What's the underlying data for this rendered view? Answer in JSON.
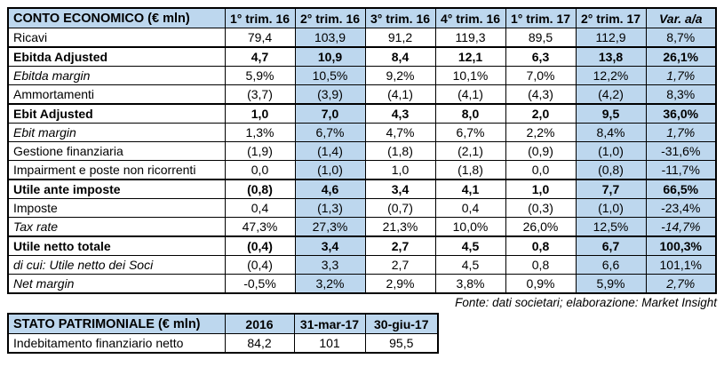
{
  "income_table": {
    "title": "CONTO ECONOMICO (€ mln)",
    "columns": [
      "1° trim. 16",
      "2° trim. 16",
      "3° trim. 16",
      "4° trim. 16",
      "1° trim. 17",
      "2° trim. 17",
      "Var. a/a"
    ],
    "highlighted_columns": [
      "2° trim. 16",
      "2° trim. 17",
      "Var. a/a"
    ],
    "rows": [
      {
        "label": "Ricavi",
        "style": "normal",
        "values": [
          "79,4",
          "103,9",
          "91,2",
          "119,3",
          "89,5",
          "112,9",
          "8,7%"
        ]
      },
      {
        "label": "Ebitda Adjusted",
        "style": "bold",
        "values": [
          "4,7",
          "10,9",
          "8,4",
          "12,1",
          "6,3",
          "13,8",
          "26,1%"
        ]
      },
      {
        "label": "Ebitda margin",
        "style": "italic",
        "values": [
          "5,9%",
          "10,5%",
          "9,2%",
          "10,1%",
          "7,0%",
          "12,2%",
          "1,7%"
        ]
      },
      {
        "label": "Ammortamenti",
        "style": "normal",
        "values": [
          "(3,7)",
          "(3,9)",
          "(4,1)",
          "(4,1)",
          "(4,3)",
          "(4,2)",
          "8,3%"
        ]
      },
      {
        "label": "Ebit Adjusted",
        "style": "bold",
        "values": [
          "1,0",
          "7,0",
          "4,3",
          "8,0",
          "2,0",
          "9,5",
          "36,0%"
        ]
      },
      {
        "label": "Ebit margin",
        "style": "italic",
        "values": [
          "1,3%",
          "6,7%",
          "4,7%",
          "6,7%",
          "2,2%",
          "8,4%",
          "1,7%"
        ]
      },
      {
        "label": "Gestione finanziaria",
        "style": "normal",
        "values": [
          "(1,9)",
          "(1,4)",
          "(1,8)",
          "(2,1)",
          "(0,9)",
          "(1,0)",
          "-31,6%"
        ]
      },
      {
        "label": "Impairment e poste non ricorrenti",
        "style": "normal",
        "values": [
          "0,0",
          "(1,0)",
          "1,0",
          "(1,8)",
          "0,0",
          "(0,8)",
          "-11,7%"
        ]
      },
      {
        "label": "Utile ante imposte",
        "style": "bold",
        "values": [
          "(0,8)",
          "4,6",
          "3,4",
          "4,1",
          "1,0",
          "7,7",
          "66,5%"
        ]
      },
      {
        "label": "Imposte",
        "style": "normal",
        "values": [
          "0,4",
          "(1,3)",
          "(0,7)",
          "0,4",
          "(0,3)",
          "(1,0)",
          "-23,4%"
        ]
      },
      {
        "label": "Tax rate",
        "style": "italic",
        "values": [
          "47,3%",
          "27,3%",
          "21,3%",
          "10,0%",
          "26,0%",
          "12,5%",
          "-14,7%"
        ]
      },
      {
        "label": "Utile netto totale",
        "style": "bold",
        "values": [
          "(0,4)",
          "3,4",
          "2,7",
          "4,5",
          "0,8",
          "6,7",
          "100,3%"
        ]
      },
      {
        "label": "di cui: Utile netto dei Soci",
        "style": "label-italic",
        "values": [
          "(0,4)",
          "3,3",
          "2,7",
          "4,5",
          "0,8",
          "6,6",
          "101,1%"
        ]
      },
      {
        "label": "Net margin",
        "style": "italic",
        "values": [
          "-0,5%",
          "3,2%",
          "2,9%",
          "3,8%",
          "0,9%",
          "5,9%",
          "2,7%"
        ]
      }
    ]
  },
  "source_note": "Fonte: dati societari; elaborazione: Market Insight",
  "balance_table": {
    "title": "STATO PATRIMONIALE (€ mln)",
    "columns": [
      "2016",
      "31-mar-17",
      "30-giu-17"
    ],
    "rows": [
      {
        "label": "Indebitamento finanziario netto",
        "style": "normal",
        "values": [
          "84,2",
          "101",
          "95,5"
        ]
      }
    ]
  },
  "colors": {
    "header_fill": "#bdd7ee",
    "highlight_fill": "#bdd7ee",
    "border": "#000000",
    "text": "#000000",
    "background": "#ffffff"
  }
}
